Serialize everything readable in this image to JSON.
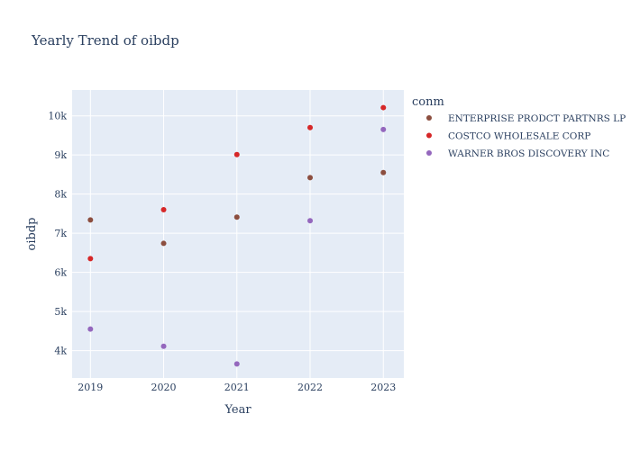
{
  "chart_data": {
    "type": "scatter",
    "title": "Yearly Trend of oibdp",
    "xlabel": "Year",
    "ylabel": "oibdp",
    "x": [
      2019,
      2020,
      2021,
      2022,
      2023
    ],
    "x_tick_labels": [
      "2019",
      "2020",
      "2021",
      "2022",
      "2023"
    ],
    "xlim": [
      2018.75,
      2023.28
    ],
    "y_ticks": [
      4000,
      5000,
      6000,
      7000,
      8000,
      9000,
      10000
    ],
    "y_tick_labels": [
      "4k",
      "5k",
      "6k",
      "7k",
      "8k",
      "9k",
      "10k"
    ],
    "ylim": [
      3300,
      10660
    ],
    "grid": true,
    "legend": {
      "title": "conm",
      "position": "top-right"
    },
    "colors": {
      "plot_bg": "#E5ECF6",
      "grid": "#ffffff",
      "text": "#2a3f5f"
    },
    "series": [
      {
        "name": "ENTERPRISE PRODCT PARTNRS LP",
        "color": "#8C4E3F",
        "values": [
          7340,
          6740,
          7410,
          8420,
          8550
        ]
      },
      {
        "name": "COSTCO WHOLESALE CORP",
        "color": "#D62728",
        "values": [
          6350,
          7600,
          9010,
          9700,
          10210
        ]
      },
      {
        "name": "WARNER BROS DISCOVERY INC",
        "color": "#9467BD",
        "values": [
          4550,
          4110,
          3660,
          7320,
          9650
        ]
      }
    ]
  }
}
